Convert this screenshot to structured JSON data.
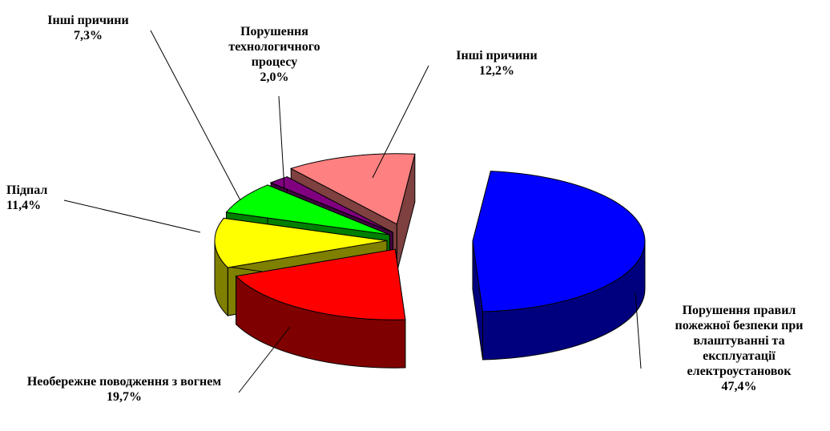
{
  "chart_data": {
    "type": "pie",
    "categories": [
      "Порушення правил пожежної безпеки при влаштуванні та експлуатації електроустановок",
      "Необережне поводження з вогнем",
      "Підпал",
      "Інші причини",
      "Порушення технологичного процесу",
      "Інші причини"
    ],
    "values": [
      47.4,
      19.7,
      11.4,
      7.3,
      2.0,
      12.2
    ],
    "value_labels": [
      "47,4%",
      "19,7%",
      "11,4%",
      "7,3%",
      "2,0%",
      "12,2%"
    ],
    "colors": [
      "#0000ff",
      "#ff0000",
      "#ffff00",
      "#00ff00",
      "#800080",
      "#ff8080"
    ]
  }
}
